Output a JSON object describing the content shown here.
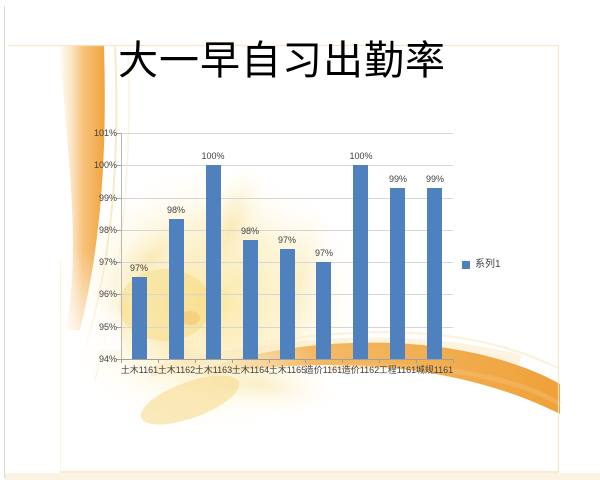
{
  "slide": {
    "title": "大一早自习出勤率"
  },
  "chart_data": {
    "type": "bar",
    "title": "大一早自习出勤率",
    "categories": [
      "土木1161",
      "土木1162",
      "土木1163",
      "土木1164",
      "土木1165",
      "造价1161",
      "造价1162",
      "工程1161",
      "城规1161"
    ],
    "series": [
      {
        "name": "系列1",
        "color": "#4E81BD",
        "values": [
          96.55,
          98.35,
          100,
          97.7,
          97.4,
          97.0,
          100,
          99.3,
          99.3
        ],
        "data_labels": [
          "97%",
          "98%",
          "100%",
          "98%",
          "97%",
          "97%",
          "100%",
          "99%",
          "99%"
        ]
      }
    ],
    "y_axis": {
      "ticks": [
        "101%",
        "100%",
        "99%",
        "98%",
        "97%",
        "96%",
        "95%",
        "94%"
      ],
      "min": 94,
      "max": 101,
      "step": 1,
      "format": "percent"
    },
    "grid": true,
    "legend": {
      "position": "right",
      "entries": [
        "系列1"
      ]
    }
  },
  "colors": {
    "bar": "#4E81BD",
    "gridline": "#D6D6D6",
    "axis": "#A0A0A0",
    "text": "#404040",
    "accent_orange": "#EF9F33",
    "accent_pale": "#FBE3BC",
    "background": "#FFFFFF"
  }
}
